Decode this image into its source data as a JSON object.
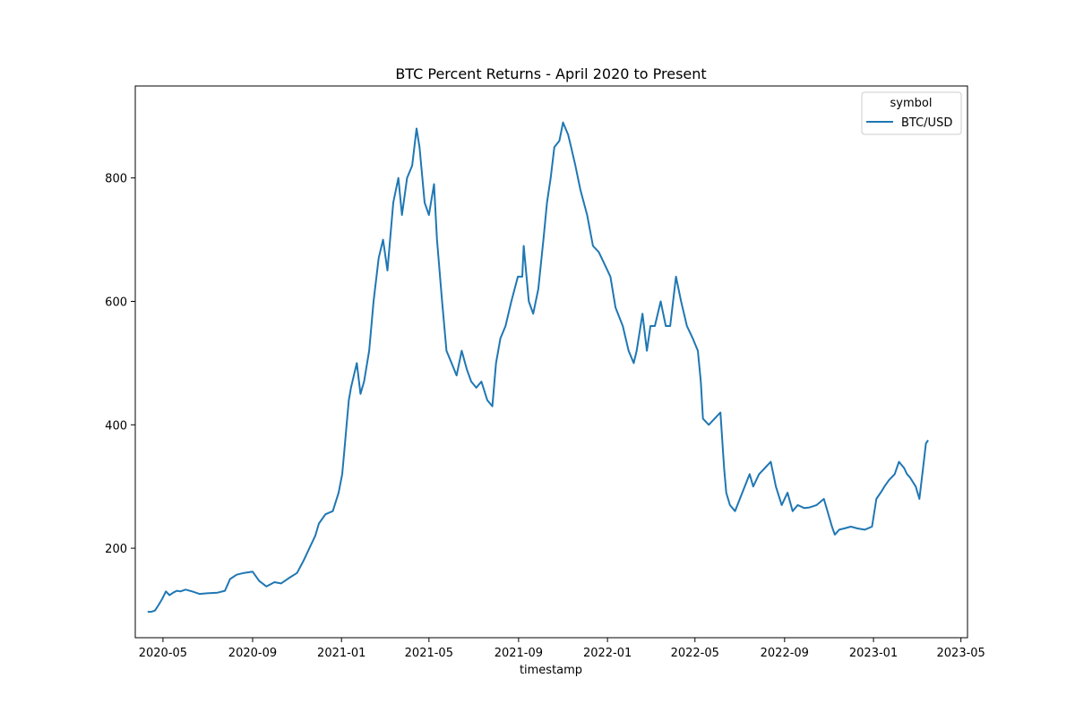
{
  "chart_data": {
    "type": "line",
    "title": "BTC Percent Returns - April 2020 to Present",
    "xlabel": "timestamp",
    "ylabel": "",
    "x_ticks": [
      "2020-05",
      "2020-09",
      "2021-01",
      "2021-05",
      "2021-09",
      "2022-01",
      "2022-05",
      "2022-09",
      "2023-01",
      "2023-05"
    ],
    "y_ticks": [
      200,
      400,
      600,
      800
    ],
    "xlim": [
      "2020-03-24",
      "2023-05-10"
    ],
    "ylim": [
      55,
      949
    ],
    "grid": false,
    "legend": {
      "title": "symbol",
      "placement": "top-right"
    },
    "line_color": "#1f77b4",
    "series": [
      {
        "name": "BTC/USD",
        "x": [
          "2020-04-10",
          "2020-04-15",
          "2020-04-20",
          "2020-04-25",
          "2020-04-30",
          "2020-05-05",
          "2020-05-10",
          "2020-05-15",
          "2020-05-20",
          "2020-05-25",
          "2020-06-01",
          "2020-06-10",
          "2020-06-20",
          "2020-07-01",
          "2020-07-15",
          "2020-07-25",
          "2020-08-01",
          "2020-08-10",
          "2020-08-20",
          "2020-09-01",
          "2020-09-10",
          "2020-09-20",
          "2020-10-01",
          "2020-10-10",
          "2020-10-20",
          "2020-11-01",
          "2020-11-10",
          "2020-11-20",
          "2020-11-26",
          "2020-12-01",
          "2020-12-10",
          "2020-12-20",
          "2020-12-28",
          "2021-01-02",
          "2021-01-05",
          "2021-01-08",
          "2021-01-11",
          "2021-01-14",
          "2021-01-18",
          "2021-01-22",
          "2021-01-27",
          "2021-02-01",
          "2021-02-08",
          "2021-02-14",
          "2021-02-21",
          "2021-02-27",
          "2021-03-05",
          "2021-03-13",
          "2021-03-20",
          "2021-03-25",
          "2021-04-01",
          "2021-04-08",
          "2021-04-14",
          "2021-04-18",
          "2021-04-25",
          "2021-05-01",
          "2021-05-08",
          "2021-05-12",
          "2021-05-19",
          "2021-05-25",
          "2021-06-01",
          "2021-06-08",
          "2021-06-15",
          "2021-06-22",
          "2021-06-28",
          "2021-07-05",
          "2021-07-12",
          "2021-07-20",
          "2021-07-27",
          "2021-08-01",
          "2021-08-07",
          "2021-08-14",
          "2021-08-22",
          "2021-08-31",
          "2021-09-06",
          "2021-09-08",
          "2021-09-15",
          "2021-09-21",
          "2021-09-28",
          "2021-10-05",
          "2021-10-10",
          "2021-10-15",
          "2021-10-20",
          "2021-10-27",
          "2021-11-01",
          "2021-11-08",
          "2021-11-12",
          "2021-11-18",
          "2021-11-25",
          "2021-12-04",
          "2021-12-12",
          "2021-12-20",
          "2021-12-28",
          "2022-01-05",
          "2022-01-12",
          "2022-01-22",
          "2022-01-30",
          "2022-02-06",
          "2022-02-10",
          "2022-02-18",
          "2022-02-24",
          "2022-03-01",
          "2022-03-07",
          "2022-03-15",
          "2022-03-22",
          "2022-03-28",
          "2022-04-05",
          "2022-04-12",
          "2022-04-20",
          "2022-04-28",
          "2022-05-05",
          "2022-05-09",
          "2022-05-12",
          "2022-05-20",
          "2022-05-28",
          "2022-06-05",
          "2022-06-10",
          "2022-06-13",
          "2022-06-18",
          "2022-06-25",
          "2022-07-05",
          "2022-07-15",
          "2022-07-20",
          "2022-07-28",
          "2022-08-05",
          "2022-08-13",
          "2022-08-20",
          "2022-08-28",
          "2022-09-05",
          "2022-09-12",
          "2022-09-19",
          "2022-09-28",
          "2022-10-05",
          "2022-10-15",
          "2022-10-25",
          "2022-11-05",
          "2022-11-09",
          "2022-11-15",
          "2022-11-22",
          "2022-12-01",
          "2022-12-10",
          "2022-12-20",
          "2022-12-30",
          "2023-01-05",
          "2023-01-12",
          "2023-01-16",
          "2023-01-22",
          "2023-01-30",
          "2023-02-05",
          "2023-02-12",
          "2023-02-16",
          "2023-02-20",
          "2023-02-28",
          "2023-03-05",
          "2023-03-10",
          "2023-03-14",
          "2023-03-17"
        ],
        "values": [
          97,
          97,
          99,
          108,
          118,
          130,
          124,
          128,
          131,
          130,
          133,
          130,
          126,
          127,
          128,
          131,
          150,
          157,
          160,
          162,
          147,
          138,
          145,
          143,
          151,
          160,
          180,
          205,
          220,
          240,
          255,
          260,
          290,
          320,
          360,
          400,
          440,
          460,
          480,
          500,
          450,
          470,
          520,
          600,
          670,
          700,
          650,
          760,
          800,
          740,
          800,
          820,
          880,
          850,
          760,
          740,
          790,
          700,
          600,
          520,
          500,
          480,
          520,
          490,
          470,
          460,
          470,
          440,
          430,
          500,
          540,
          560,
          600,
          640,
          640,
          690,
          600,
          580,
          620,
          700,
          760,
          800,
          850,
          860,
          890,
          870,
          850,
          820,
          780,
          740,
          690,
          680,
          660,
          640,
          590,
          560,
          520,
          500,
          520,
          580,
          520,
          560,
          560,
          600,
          560,
          560,
          640,
          600,
          560,
          540,
          520,
          470,
          410,
          400,
          410,
          420,
          330,
          290,
          270,
          260,
          290,
          320,
          300,
          320,
          330,
          340,
          300,
          270,
          290,
          260,
          270,
          265,
          266,
          270,
          280,
          235,
          222,
          230,
          232,
          235,
          232,
          230,
          235,
          280,
          292,
          300,
          310,
          320,
          340,
          330,
          320,
          315,
          300,
          280,
          330,
          370,
          375
        ]
      }
    ]
  }
}
